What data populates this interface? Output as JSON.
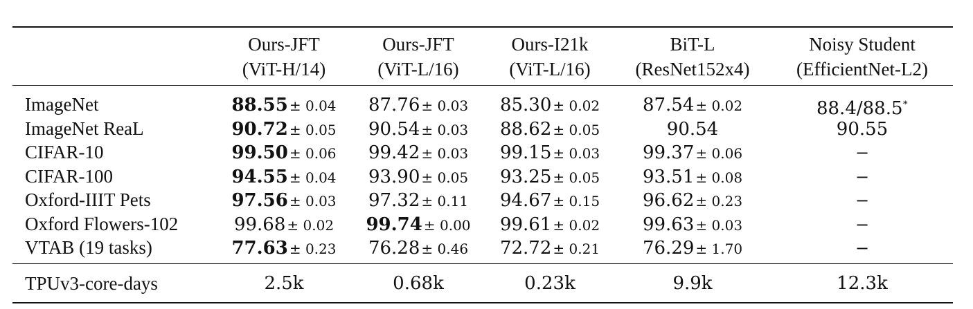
{
  "columns": [
    {
      "name": "Ours-JFT",
      "sub": "(ViT-H/14)"
    },
    {
      "name": "Ours-JFT",
      "sub": "(ViT-L/16)"
    },
    {
      "name": "Ours-I21k",
      "sub": "(ViT-L/16)"
    },
    {
      "name": "BiT-L",
      "sub": "(ResNet152x4)"
    },
    {
      "name": "Noisy Student",
      "sub": "(EfficientNet-L2)"
    }
  ],
  "rows": [
    {
      "label": "ImageNet",
      "cells": [
        {
          "v": "88.55",
          "pm": "± 0.04",
          "bold": true
        },
        {
          "v": "87.76",
          "pm": "± 0.03",
          "bold": false
        },
        {
          "v": "85.30",
          "pm": "± 0.02",
          "bold": false
        },
        {
          "v": "87.54",
          "pm": "± 0.02",
          "bold": false
        },
        {
          "v": "88.4/88.5",
          "pm": "",
          "bold": false,
          "star": "*"
        }
      ]
    },
    {
      "label": "ImageNet ReaL",
      "cells": [
        {
          "v": "90.72",
          "pm": "± 0.05",
          "bold": true
        },
        {
          "v": "90.54",
          "pm": "± 0.03",
          "bold": false
        },
        {
          "v": "88.62",
          "pm": "± 0.05",
          "bold": false
        },
        {
          "v": "90.54",
          "pm": "",
          "bold": false
        },
        {
          "v": "90.55",
          "pm": "",
          "bold": false
        }
      ]
    },
    {
      "label": "CIFAR-10",
      "cells": [
        {
          "v": "99.50",
          "pm": "± 0.06",
          "bold": true
        },
        {
          "v": "99.42",
          "pm": "± 0.03",
          "bold": false
        },
        {
          "v": "99.15",
          "pm": "± 0.03",
          "bold": false
        },
        {
          "v": "99.37",
          "pm": "± 0.06",
          "bold": false
        },
        {
          "v": "−",
          "pm": "",
          "bold": false,
          "dash": true
        }
      ]
    },
    {
      "label": "CIFAR-100",
      "cells": [
        {
          "v": "94.55",
          "pm": "± 0.04",
          "bold": true
        },
        {
          "v": "93.90",
          "pm": "± 0.05",
          "bold": false
        },
        {
          "v": "93.25",
          "pm": "± 0.05",
          "bold": false
        },
        {
          "v": "93.51",
          "pm": "± 0.08",
          "bold": false
        },
        {
          "v": "−",
          "pm": "",
          "bold": false,
          "dash": true
        }
      ]
    },
    {
      "label": "Oxford-IIIT Pets",
      "cells": [
        {
          "v": "97.56",
          "pm": "± 0.03",
          "bold": true
        },
        {
          "v": "97.32",
          "pm": "± 0.11",
          "bold": false
        },
        {
          "v": "94.67",
          "pm": "± 0.15",
          "bold": false
        },
        {
          "v": "96.62",
          "pm": "± 0.23",
          "bold": false
        },
        {
          "v": "−",
          "pm": "",
          "bold": false,
          "dash": true
        }
      ]
    },
    {
      "label": "Oxford Flowers-102",
      "cells": [
        {
          "v": "99.68",
          "pm": "± 0.02",
          "bold": false
        },
        {
          "v": "99.74",
          "pm": "± 0.00",
          "bold": true
        },
        {
          "v": "99.61",
          "pm": "± 0.02",
          "bold": false
        },
        {
          "v": "99.63",
          "pm": "± 0.03",
          "bold": false
        },
        {
          "v": "−",
          "pm": "",
          "bold": false,
          "dash": true
        }
      ]
    },
    {
      "label": "VTAB (19 tasks)",
      "cells": [
        {
          "v": "77.63",
          "pm": "± 0.23",
          "bold": true
        },
        {
          "v": "76.28",
          "pm": "± 0.46",
          "bold": false
        },
        {
          "v": "72.72",
          "pm": "± 0.21",
          "bold": false
        },
        {
          "v": "76.29",
          "pm": "± 1.70",
          "bold": false
        },
        {
          "v": "−",
          "pm": "",
          "bold": false,
          "dash": true
        }
      ]
    }
  ],
  "footer": {
    "label": "TPUv3-core-days",
    "cells": [
      "2.5k",
      "0.68k",
      "0.23k",
      "9.9k",
      "12.3k"
    ]
  }
}
